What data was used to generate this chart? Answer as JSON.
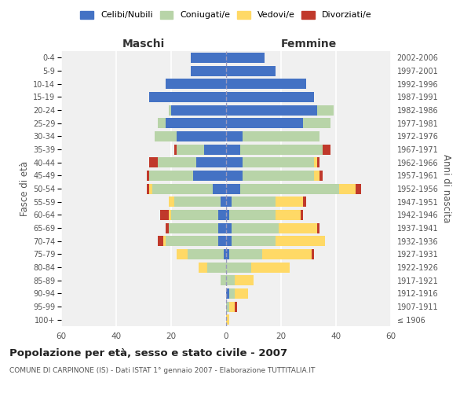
{
  "age_groups": [
    "100+",
    "95-99",
    "90-94",
    "85-89",
    "80-84",
    "75-79",
    "70-74",
    "65-69",
    "60-64",
    "55-59",
    "50-54",
    "45-49",
    "40-44",
    "35-39",
    "30-34",
    "25-29",
    "20-24",
    "15-19",
    "10-14",
    "5-9",
    "0-4"
  ],
  "birth_years": [
    "≤ 1906",
    "1907-1911",
    "1912-1916",
    "1917-1921",
    "1922-1926",
    "1927-1931",
    "1932-1936",
    "1937-1941",
    "1942-1946",
    "1947-1951",
    "1952-1956",
    "1957-1961",
    "1962-1966",
    "1967-1971",
    "1972-1976",
    "1977-1981",
    "1982-1986",
    "1987-1991",
    "1992-1996",
    "1997-2001",
    "2002-2006"
  ],
  "maschi": {
    "celibi": [
      0,
      0,
      0,
      0,
      0,
      1,
      3,
      3,
      3,
      2,
      5,
      12,
      11,
      8,
      18,
      22,
      20,
      28,
      22,
      13,
      13
    ],
    "coniugati": [
      0,
      0,
      0,
      2,
      7,
      13,
      19,
      18,
      17,
      17,
      22,
      16,
      14,
      10,
      8,
      3,
      1,
      0,
      0,
      0,
      0
    ],
    "vedovi": [
      0,
      0,
      0,
      0,
      3,
      4,
      1,
      0,
      1,
      2,
      1,
      0,
      0,
      0,
      0,
      0,
      0,
      0,
      0,
      0,
      0
    ],
    "divorziati": [
      0,
      0,
      0,
      0,
      0,
      0,
      2,
      1,
      3,
      0,
      1,
      1,
      3,
      1,
      0,
      0,
      0,
      0,
      0,
      0,
      0
    ]
  },
  "femmine": {
    "nubili": [
      0,
      0,
      1,
      0,
      0,
      1,
      2,
      2,
      1,
      2,
      5,
      6,
      6,
      5,
      6,
      28,
      33,
      32,
      29,
      18,
      14
    ],
    "coniugate": [
      0,
      1,
      2,
      3,
      9,
      12,
      16,
      17,
      17,
      16,
      36,
      26,
      26,
      30,
      28,
      10,
      6,
      0,
      0,
      0,
      0
    ],
    "vedove": [
      1,
      2,
      5,
      7,
      14,
      18,
      18,
      14,
      9,
      10,
      6,
      2,
      1,
      0,
      0,
      0,
      0,
      0,
      0,
      0,
      0
    ],
    "divorziate": [
      0,
      1,
      0,
      0,
      0,
      1,
      0,
      1,
      1,
      1,
      2,
      1,
      1,
      3,
      0,
      0,
      0,
      0,
      0,
      0,
      0
    ]
  },
  "colors": {
    "celibi": "#4472c4",
    "coniugati": "#b8d4a8",
    "vedovi": "#ffd966",
    "divorziati": "#c0392b"
  },
  "xlim": 60,
  "title": "Popolazione per età, sesso e stato civile - 2007",
  "subtitle": "COMUNE DI CARPINONE (IS) - Dati ISTAT 1° gennaio 2007 - Elaborazione TUTTITALIA.IT",
  "ylabel_left": "Fasce di età",
  "ylabel_right": "Anni di nascita",
  "xlabel_maschi": "Maschi",
  "xlabel_femmine": "Femmine",
  "legend_labels": [
    "Celibi/Nubili",
    "Coniugati/e",
    "Vedovi/e",
    "Divorziati/e"
  ],
  "background_color": "#ffffff",
  "plot_bg_color": "#f0f0f0"
}
